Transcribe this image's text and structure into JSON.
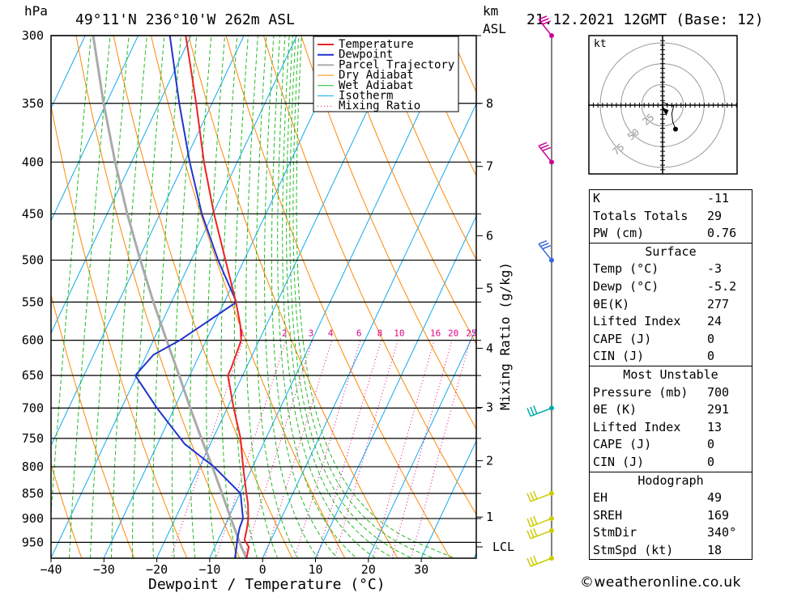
{
  "header": {
    "pressure_unit": "hPa",
    "location": "49°11'N  236°10'W  262m  ASL",
    "height_unit_line1": "km",
    "height_unit_line2": "ASL",
    "datetime": "21.12.2021  12GMT  (Base: 12)"
  },
  "chart_data": {
    "type": "skew-t",
    "xlabel": "Dewpoint / Temperature (°C)",
    "ylabel_left": "hPa",
    "mixing_ratio_axis_label": "Mixing Ratio (g/kg)",
    "pressure_levels": [
      300,
      350,
      400,
      450,
      500,
      550,
      600,
      650,
      700,
      750,
      800,
      850,
      900,
      950
    ],
    "temperature_ticks": [
      -40,
      -30,
      -20,
      -10,
      0,
      10,
      20,
      30
    ],
    "height_km_labels": [
      {
        "label": "8",
        "p": 350
      },
      {
        "label": "7",
        "p": 404
      },
      {
        "label": "6",
        "p": 473
      },
      {
        "label": "5",
        "p": 533
      },
      {
        "label": "4",
        "p": 611
      },
      {
        "label": "3",
        "p": 699
      },
      {
        "label": "2",
        "p": 789
      },
      {
        "label": "1",
        "p": 897
      },
      {
        "label": "LCL",
        "p": 960
      }
    ],
    "mixing_ratio_labels": [
      "1",
      "2",
      "3",
      "4",
      "6",
      "8",
      "10",
      "16",
      "20",
      "25"
    ],
    "mixing_ratio_values": [
      1,
      2,
      3,
      4,
      6,
      8,
      10,
      16,
      20,
      25
    ],
    "legend": [
      "Temperature",
      "Dewpoint",
      "Parcel Trajectory",
      "Dry Adiabat",
      "Wet Adiabat",
      "Isotherm",
      "Mixing Ratio"
    ],
    "temperature_profile": [
      {
        "p": 985,
        "t": -3.0
      },
      {
        "p": 960,
        "t": -3.6
      },
      {
        "p": 945,
        "t": -5.0
      },
      {
        "p": 920,
        "t": -5.6
      },
      {
        "p": 900,
        "t": -6.2
      },
      {
        "p": 870,
        "t": -7.6
      },
      {
        "p": 850,
        "t": -8.8
      },
      {
        "p": 800,
        "t": -11.8
      },
      {
        "p": 750,
        "t": -14.8
      },
      {
        "p": 700,
        "t": -18.8
      },
      {
        "p": 650,
        "t": -22.8
      },
      {
        "p": 640,
        "t": -22.8
      },
      {
        "p": 600,
        "t": -23.4
      },
      {
        "p": 580,
        "t": -24.9
      },
      {
        "p": 550,
        "t": -27.8
      },
      {
        "p": 500,
        "t": -33.5
      },
      {
        "p": 450,
        "t": -39.8
      },
      {
        "p": 400,
        "t": -46.3
      },
      {
        "p": 350,
        "t": -53.0
      },
      {
        "p": 300,
        "t": -61.0
      }
    ],
    "dewpoint_profile": [
      {
        "p": 985,
        "t": -5.2
      },
      {
        "p": 960,
        "t": -5.9
      },
      {
        "p": 945,
        "t": -6.4
      },
      {
        "p": 920,
        "t": -7.0
      },
      {
        "p": 900,
        "t": -7.2
      },
      {
        "p": 850,
        "t": -9.9
      },
      {
        "p": 800,
        "t": -17.3
      },
      {
        "p": 760,
        "t": -24.8
      },
      {
        "p": 700,
        "t": -33.3
      },
      {
        "p": 650,
        "t": -40.3
      },
      {
        "p": 620,
        "t": -38.7
      },
      {
        "p": 600,
        "t": -35.0
      },
      {
        "p": 550,
        "t": -27.7
      },
      {
        "p": 500,
        "t": -34.9
      },
      {
        "p": 450,
        "t": -42.1
      },
      {
        "p": 400,
        "t": -49.0
      },
      {
        "p": 350,
        "t": -56.2
      },
      {
        "p": 300,
        "t": -64.0
      }
    ],
    "parcel_profile": [
      {
        "p": 985,
        "t": -3.0
      },
      {
        "p": 960,
        "t": -5.0
      },
      {
        "p": 900,
        "t": -9.5
      },
      {
        "p": 850,
        "t": -13.4
      },
      {
        "p": 800,
        "t": -17.6
      },
      {
        "p": 750,
        "t": -22.2
      },
      {
        "p": 700,
        "t": -27.0
      },
      {
        "p": 650,
        "t": -32.0
      },
      {
        "p": 600,
        "t": -37.5
      },
      {
        "p": 550,
        "t": -43.4
      },
      {
        "p": 500,
        "t": -49.6
      },
      {
        "p": 450,
        "t": -56.2
      },
      {
        "p": 400,
        "t": -63.1
      },
      {
        "p": 350,
        "t": -70.5
      },
      {
        "p": 300,
        "t": -78.5
      }
    ],
    "wind_barbs": [
      {
        "p": 300,
        "color": "#cc0099"
      },
      {
        "p": 400,
        "color": "#cc0099"
      },
      {
        "p": 500,
        "color": "#3366dd"
      },
      {
        "p": 700,
        "color": "#00aaaa"
      },
      {
        "p": 850,
        "color": "#cccc00"
      },
      {
        "p": 900,
        "color": "#cccc00"
      },
      {
        "p": 925,
        "color": "#cccc00"
      },
      {
        "p": 985,
        "color": "#cccc00"
      }
    ],
    "hodograph": {
      "unit_label": "kt",
      "ring_labels": [
        "25",
        "50",
        "75"
      ],
      "trace_kt": [
        [
          -2,
          -1
        ],
        [
          1,
          3
        ],
        [
          7,
          0
        ],
        [
          12,
          -1
        ],
        [
          10,
          -9
        ],
        [
          11,
          -18
        ],
        [
          14,
          -26
        ]
      ],
      "storm_motion_kt": [
        3,
        -8
      ]
    }
  },
  "indices": {
    "top": [
      {
        "label": "K",
        "value": "-11"
      },
      {
        "label": "Totals Totals",
        "value": "29"
      },
      {
        "label": "PW (cm)",
        "value": "0.76"
      }
    ],
    "surface_title": "Surface",
    "surface": [
      {
        "label": "Temp (°C)",
        "value": "-3"
      },
      {
        "label": "Dewp (°C)",
        "value": "-5.2"
      },
      {
        "label": "θE(K)",
        "value": "277"
      },
      {
        "label": "Lifted Index",
        "value": "24"
      },
      {
        "label": "CAPE (J)",
        "value": "0"
      },
      {
        "label": "CIN (J)",
        "value": "0"
      }
    ],
    "unstable_title": "Most Unstable",
    "unstable": [
      {
        "label": "Pressure (mb)",
        "value": "700"
      },
      {
        "label": "θE (K)",
        "value": "291"
      },
      {
        "label": "Lifted Index",
        "value": "13"
      },
      {
        "label": "CAPE (J)",
        "value": "0"
      },
      {
        "label": "CIN (J)",
        "value": "0"
      }
    ],
    "hodograph_title": "Hodograph",
    "hodograph": [
      {
        "label": "EH",
        "value": "49"
      },
      {
        "label": "SREH",
        "value": "169"
      },
      {
        "label": "StmDir",
        "value": "340°"
      },
      {
        "label": "StmSpd (kt)",
        "value": "18"
      }
    ]
  },
  "colors": {
    "temperature": "#ee2222",
    "dewpoint": "#2233cc",
    "parcel": "#aaaaaa",
    "dry_adiabat": "#ff8800",
    "wet_adiabat": "#22bb22",
    "isotherm": "#11aaee",
    "mixing_ratio": "#dd0088"
  },
  "footer": {
    "credit": "©weatheronline.co.uk"
  }
}
